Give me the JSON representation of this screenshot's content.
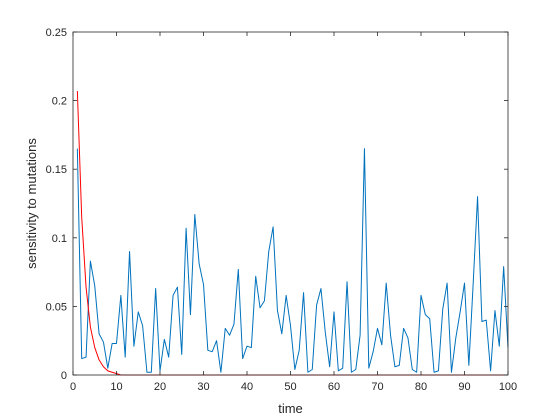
{
  "chart_data": {
    "type": "line",
    "title": "",
    "xlabel": "time",
    "ylabel": "sensitivity  to mutations",
    "xlim": [
      0,
      100
    ],
    "ylim": [
      0,
      0.25
    ],
    "x_ticks": [
      "0",
      "10",
      "20",
      "30",
      "40",
      "50",
      "60",
      "70",
      "80",
      "90",
      "100"
    ],
    "y_ticks": [
      "0",
      "0.05",
      "0.1",
      "0.15",
      "0.2",
      "0.25"
    ],
    "grid": false,
    "legend": "none",
    "series": [
      {
        "color": "#0072BD",
        "x": [
          1,
          2,
          3,
          4,
          5,
          6,
          7,
          8,
          9,
          10,
          11,
          12,
          13,
          14,
          15,
          16,
          17,
          18,
          19,
          20,
          21,
          22,
          23,
          24,
          25,
          26,
          27,
          28,
          29,
          30,
          31,
          32,
          33,
          34,
          35,
          36,
          37,
          38,
          39,
          40,
          41,
          42,
          43,
          44,
          45,
          46,
          47,
          48,
          49,
          50,
          51,
          52,
          53,
          54,
          55,
          56,
          57,
          58,
          59,
          60,
          61,
          62,
          63,
          64,
          65,
          66,
          67,
          68,
          69,
          70,
          71,
          72,
          73,
          74,
          75,
          76,
          77,
          78,
          79,
          80,
          81,
          82,
          83,
          84,
          85,
          86,
          87,
          88,
          89,
          90,
          91,
          92,
          93,
          94,
          95,
          96,
          97,
          98,
          99,
          100
        ],
        "y": [
          0.165,
          0.012,
          0.013,
          0.083,
          0.065,
          0.03,
          0.024,
          0.005,
          0.023,
          0.023,
          0.058,
          0.013,
          0.09,
          0.021,
          0.046,
          0.036,
          0.002,
          0.002,
          0.063,
          0.003,
          0.026,
          0.013,
          0.058,
          0.064,
          0.015,
          0.107,
          0.044,
          0.117,
          0.081,
          0.066,
          0.018,
          0.017,
          0.025,
          0.002,
          0.034,
          0.029,
          0.037,
          0.077,
          0.012,
          0.021,
          0.02,
          0.072,
          0.049,
          0.054,
          0.09,
          0.108,
          0.047,
          0.03,
          0.058,
          0.036,
          0.004,
          0.018,
          0.06,
          0.002,
          0.004,
          0.051,
          0.063,
          0.031,
          0.006,
          0.046,
          0.003,
          0.005,
          0.068,
          0.002,
          0.004,
          0.029,
          0.165,
          0.005,
          0.017,
          0.034,
          0.022,
          0.067,
          0.029,
          0.006,
          0.007,
          0.034,
          0.027,
          0.004,
          0.002,
          0.058,
          0.044,
          0.041,
          0.002,
          0.003,
          0.048,
          0.067,
          0.002,
          0.027,
          0.046,
          0.067,
          0.007,
          0.067,
          0.13,
          0.039,
          0.04,
          0.003,
          0.047,
          0.021,
          0.079,
          0.02
        ]
      },
      {
        "color": "#FF0000",
        "x": [
          1,
          2,
          3,
          4,
          5,
          6,
          7,
          8,
          9,
          10,
          11,
          12,
          13,
          14,
          15,
          16,
          17,
          18,
          19,
          20,
          21,
          22,
          23,
          24,
          25,
          26,
          27,
          28,
          29,
          30,
          31,
          32,
          33,
          34,
          35,
          36,
          37,
          38,
          39,
          40,
          41,
          42,
          43,
          44,
          45,
          46,
          47,
          48,
          49,
          50,
          51,
          52,
          53,
          54,
          55,
          56,
          57,
          58,
          59,
          60,
          61,
          62,
          63,
          64,
          65,
          66,
          67,
          68,
          69,
          70,
          71,
          72,
          73,
          74,
          75,
          76,
          77,
          78,
          79,
          80,
          81,
          82,
          83,
          84,
          85,
          86,
          87,
          88,
          89,
          90,
          91,
          92,
          93,
          94,
          95,
          96,
          97,
          98,
          99,
          100
        ],
        "y": [
          0.207,
          0.115,
          0.064,
          0.035,
          0.02,
          0.011,
          0.006,
          0.003,
          0.002,
          0.001,
          0,
          0,
          0,
          0,
          0,
          0,
          0,
          0,
          0,
          0,
          0,
          0,
          0,
          0,
          0,
          0,
          0,
          0,
          0,
          0,
          0,
          0,
          0,
          0,
          0,
          0,
          0,
          0,
          0,
          0,
          0,
          0,
          0,
          0,
          0,
          0,
          0,
          0,
          0,
          0,
          0,
          0,
          0,
          0,
          0,
          0,
          0,
          0,
          0,
          0,
          0,
          0,
          0,
          0,
          0,
          0,
          0,
          0,
          0,
          0,
          0,
          0,
          0,
          0,
          0,
          0,
          0,
          0,
          0,
          0,
          0,
          0,
          0,
          0,
          0,
          0,
          0,
          0,
          0,
          0,
          0,
          0,
          0,
          0,
          0,
          0,
          0,
          0,
          0,
          0
        ]
      }
    ]
  }
}
